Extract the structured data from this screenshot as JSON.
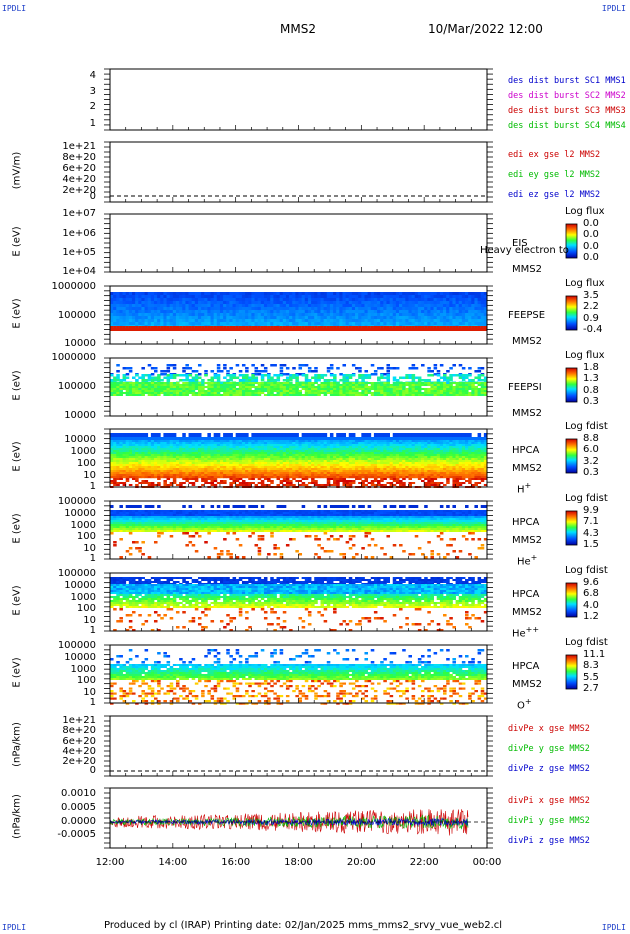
{
  "header": {
    "title": "MMS2",
    "datetime": "10/Mar/2022 12:00",
    "corner_label": "IPDLI"
  },
  "footer": {
    "text": "Produced by cl (IRAP)    Printing date: 02/Jan/2025    mms_mms2_srvy_vue_web2.cl"
  },
  "chart_data": {
    "type": "multi-panel time series",
    "x": {
      "ticks": [
        "12:00",
        "14:00",
        "16:00",
        "18:00",
        "20:00",
        "22:00",
        "00:00"
      ],
      "range": [
        "10/Mar/2022 12:00",
        "11/Mar/2022 00:00"
      ]
    },
    "panels": [
      {
        "id": "panel-burst",
        "type": "line",
        "ylabel": "",
        "yticks": [
          "4",
          "3",
          "2",
          "1"
        ],
        "ylim": [
          0.5,
          4.5
        ],
        "legend": [
          {
            "label": "des dist burst SC1 MMS1",
            "color": "#0000cc"
          },
          {
            "label": "des dist burst SC2 MMS2",
            "color": "#cc00cc"
          },
          {
            "label": "des dist burst SC3 MMS3",
            "color": "#cc0000"
          },
          {
            "label": "des dist burst SC4 MMS4",
            "color": "#00bb00"
          }
        ]
      },
      {
        "id": "panel-edi",
        "type": "line",
        "ylabel": "(mV/m)",
        "yticks": [
          "1e+21",
          "8e+20",
          "6e+20",
          "4e+20",
          "2e+20",
          "0"
        ],
        "ylim": [
          0,
          1.05e+21
        ],
        "legend": [
          {
            "label": "edi ex gse l2 MMS2",
            "color": "#cc0000"
          },
          {
            "label": "edi ey gse l2 MMS2",
            "color": "#00bb00"
          },
          {
            "label": "edi ez gse l2 MMS2",
            "color": "#0000cc"
          }
        ]
      },
      {
        "id": "panel-eis",
        "type": "heatmap",
        "ylabel": "E (eV)",
        "yticks": [
          "1e+07",
          "1e+06",
          "1e+05",
          "1e+04"
        ],
        "ylim": [
          10000,
          10000000
        ],
        "log": true,
        "instrument": [
          "EIS",
          "MMS2"
        ],
        "overlap_text": "Heavy electron to",
        "colorbar": {
          "title": "Log flux",
          "values": [
            "0.0",
            "0.0",
            "0.0",
            "0.0"
          ]
        }
      },
      {
        "id": "panel-feepse",
        "type": "heatmap",
        "ylabel": "E (eV)",
        "yticks": [
          "1000000",
          "100000",
          "10000"
        ],
        "ylim": [
          10000,
          1000000
        ],
        "log": true,
        "instrument": [
          "FEEPSE",
          "MMS2"
        ],
        "colorbar": {
          "title": "Log flux",
          "values": [
            "3.5",
            "2.2",
            "0.9",
            "-0.4"
          ]
        }
      },
      {
        "id": "panel-feepsi",
        "type": "heatmap",
        "ylabel": "E (eV)",
        "yticks": [
          "1000000",
          "100000",
          "10000"
        ],
        "ylim": [
          10000,
          1000000
        ],
        "log": true,
        "instrument": [
          "FEEPSI",
          "MMS2"
        ],
        "colorbar": {
          "title": "Log flux",
          "values": [
            "1.8",
            "1.3",
            "0.8",
            "0.3"
          ]
        }
      },
      {
        "id": "panel-hpca-h",
        "type": "heatmap",
        "ylabel": "E (eV)",
        "yticks": [
          "10000",
          "1000",
          "100",
          "10",
          "1"
        ],
        "ylim": [
          1,
          40000
        ],
        "log": true,
        "instrument": [
          "HPCA",
          "MMS2"
        ],
        "species": "H",
        "charge": "+",
        "colorbar": {
          "title": "Log fdist",
          "values": [
            "8.8",
            "6.0",
            "3.2",
            "0.3"
          ]
        }
      },
      {
        "id": "panel-hpca-he",
        "type": "heatmap",
        "ylabel": "E (eV)",
        "yticks": [
          "100000",
          "10000",
          "1000",
          "100",
          "10",
          "1"
        ],
        "ylim": [
          1,
          100000
        ],
        "log": true,
        "instrument": [
          "HPCA",
          "MMS2"
        ],
        "species": "He",
        "charge": "+",
        "colorbar": {
          "title": "Log fdist",
          "values": [
            "9.9",
            "7.1",
            "4.3",
            "1.5"
          ]
        }
      },
      {
        "id": "panel-hpca-hepp",
        "type": "heatmap",
        "ylabel": "E (eV)",
        "yticks": [
          "100000",
          "10000",
          "1000",
          "100",
          "10",
          "1"
        ],
        "ylim": [
          1,
          100000
        ],
        "log": true,
        "instrument": [
          "HPCA",
          "MMS2"
        ],
        "species": "He",
        "charge": "++",
        "colorbar": {
          "title": "Log fdist",
          "values": [
            "9.6",
            "6.8",
            "4.0",
            "1.2"
          ]
        }
      },
      {
        "id": "panel-hpca-o",
        "type": "heatmap",
        "ylabel": "E (eV)",
        "yticks": [
          "100000",
          "10000",
          "1000",
          "100",
          "10",
          "1"
        ],
        "ylim": [
          1,
          100000
        ],
        "log": true,
        "instrument": [
          "HPCA",
          "MMS2"
        ],
        "species": "O",
        "charge": "+",
        "colorbar": {
          "title": "Log fdist",
          "values": [
            "11.1",
            "8.3",
            "5.5",
            "2.7"
          ]
        }
      },
      {
        "id": "panel-divpe",
        "type": "line",
        "ylabel": "(nPa/km)",
        "yticks": [
          "1e+21",
          "8e+20",
          "6e+20",
          "4e+20",
          "2e+20",
          "0"
        ],
        "ylim": [
          0,
          1.05e+21
        ],
        "legend": [
          {
            "label": "divPe x gse MMS2",
            "color": "#cc0000"
          },
          {
            "label": "divPe y gse MMS2",
            "color": "#00bb00"
          },
          {
            "label": "divPe z gse MMS2",
            "color": "#0000cc"
          }
        ]
      },
      {
        "id": "panel-divpi",
        "type": "line",
        "ylabel": "(nPa/km)",
        "yticks": [
          "0.0010",
          "0.0005",
          "0.0000",
          "-0.0005"
        ],
        "ylim": [
          -0.00085,
          0.0012
        ],
        "legend": [
          {
            "label": "divPi x gse MMS2",
            "color": "#cc0000"
          },
          {
            "label": "divPi y gse MMS2",
            "color": "#00bb00"
          },
          {
            "label": "divPi z gse MMS2",
            "color": "#0000cc"
          }
        ]
      }
    ]
  }
}
